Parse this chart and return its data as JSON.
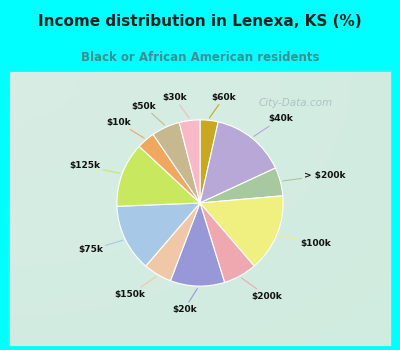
{
  "title": "Income distribution in Lenexa, KS (%)",
  "subtitle": "Black or African American residents",
  "title_color": "#222222",
  "subtitle_color": "#3a9090",
  "bg_outer": "#00ffff",
  "bg_chart": "#e0f0e8",
  "watermark": "City-Data.com",
  "segments": [
    {
      "label": "$60k",
      "value": 3.5,
      "color": "#c8a820"
    },
    {
      "label": "$40k",
      "value": 14.5,
      "color": "#b8a8d8"
    },
    {
      "label": "> $200k",
      "value": 5.5,
      "color": "#a8c8a0"
    },
    {
      "label": "$100k",
      "value": 15.0,
      "color": "#f0f080"
    },
    {
      "label": "$200k",
      "value": 6.5,
      "color": "#f0a8b0"
    },
    {
      "label": "$20k",
      "value": 10.5,
      "color": "#9898d8"
    },
    {
      "label": "$150k",
      "value": 5.5,
      "color": "#f0c8a8"
    },
    {
      "label": "$75k",
      "value": 13.0,
      "color": "#a8c8e8"
    },
    {
      "label": "$125k",
      "value": 12.5,
      "color": "#c8e860"
    },
    {
      "label": "$10k",
      "value": 3.5,
      "color": "#f0a860"
    },
    {
      "label": "$50k",
      "value": 5.5,
      "color": "#c8b890"
    },
    {
      "label": "$30k",
      "value": 4.0,
      "color": "#f8b8c8"
    }
  ]
}
